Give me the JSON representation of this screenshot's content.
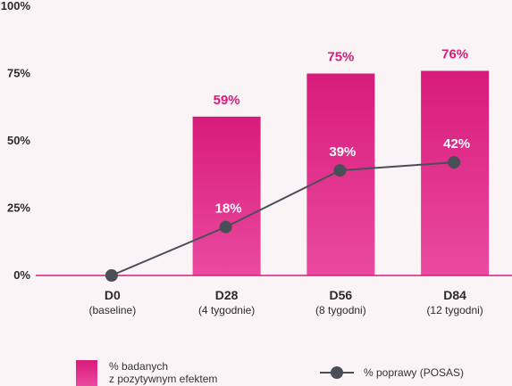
{
  "chart_data": {
    "type": "bar",
    "categories": [
      "D0",
      "D28",
      "D56",
      "D84"
    ],
    "category_sublabels": [
      "(baseline)",
      "(4 tygodnie)",
      "(8 tygodni)",
      "(12 tygodni)"
    ],
    "ylim": [
      0,
      100
    ],
    "yticks": [
      0,
      25,
      50,
      75,
      100
    ],
    "ytick_labels": [
      "0%",
      "25%",
      "50%",
      "75%",
      "100%"
    ],
    "grid": false,
    "legend_position": "bottom",
    "series": [
      {
        "name": "% badanych z pozytywnym efektem",
        "legend_lines": [
          "% badanych",
          "z pozytywnym efektem"
        ],
        "type": "bar",
        "values": [
          null,
          59,
          75,
          76
        ],
        "labels": [
          "",
          "59%",
          "75%",
          "76%"
        ],
        "color": "#d81b7b"
      },
      {
        "name": "% poprawy (POSAS)",
        "type": "line",
        "values": [
          0,
          18,
          39,
          42
        ],
        "labels": [
          "",
          "18%",
          "39%",
          "42%"
        ],
        "color": "#4a4f57"
      }
    ]
  }
}
